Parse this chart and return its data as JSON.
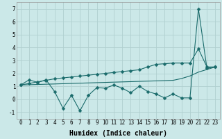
{
  "xlabel": "Humidex (Indice chaleur)",
  "ylabel": "",
  "background_color": "#cbe8e8",
  "grid_color": "#b0d0d0",
  "line_color": "#1a6b6b",
  "xlim": [
    -0.5,
    23.5
  ],
  "ylim": [
    -1.5,
    7.5
  ],
  "yticks": [
    -1,
    0,
    1,
    2,
    3,
    4,
    5,
    6,
    7
  ],
  "xticks": [
    0,
    1,
    2,
    3,
    4,
    5,
    6,
    7,
    8,
    9,
    10,
    11,
    12,
    13,
    14,
    15,
    16,
    17,
    18,
    19,
    20,
    21,
    22,
    23
  ],
  "x": [
    0,
    1,
    2,
    3,
    4,
    5,
    6,
    7,
    8,
    9,
    10,
    11,
    12,
    13,
    14,
    15,
    16,
    17,
    18,
    19,
    20,
    21,
    22,
    23
  ],
  "y_jagged": [
    1.1,
    1.5,
    1.3,
    1.5,
    0.6,
    -0.7,
    0.3,
    -0.9,
    0.3,
    0.9,
    0.85,
    1.1,
    0.85,
    0.5,
    1.0,
    0.6,
    0.4,
    0.1,
    0.4,
    0.1,
    0.1,
    7.0,
    2.4,
    2.5
  ],
  "y_trend_upper": [
    1.1,
    1.22,
    1.34,
    1.46,
    1.58,
    1.65,
    1.72,
    1.79,
    1.86,
    1.93,
    2.0,
    2.07,
    2.14,
    2.21,
    2.28,
    2.5,
    2.7,
    2.75,
    2.8,
    2.8,
    2.8,
    3.9,
    2.5,
    2.5
  ],
  "y_trend_lower": [
    1.1,
    1.12,
    1.14,
    1.16,
    1.18,
    1.2,
    1.22,
    1.24,
    1.26,
    1.28,
    1.3,
    1.32,
    1.34,
    1.36,
    1.38,
    1.4,
    1.42,
    1.44,
    1.46,
    1.6,
    1.8,
    2.1,
    2.3,
    2.5
  ],
  "fontsize_label": 7,
  "fontsize_tick": 5.5,
  "marker_size": 2.5,
  "lw": 0.8
}
